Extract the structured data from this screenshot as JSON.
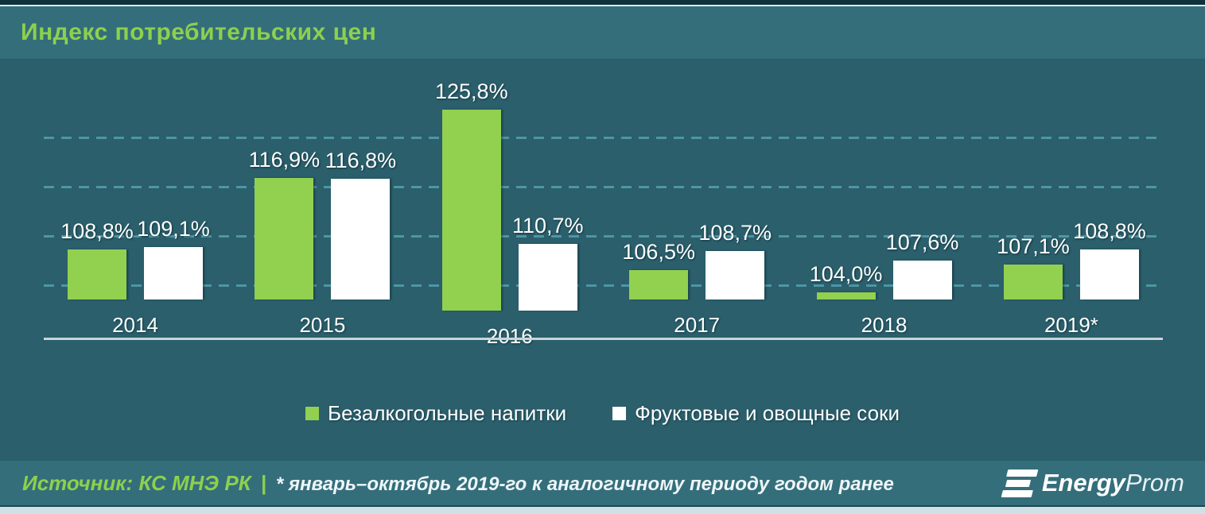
{
  "title": "Индекс потребительских цен",
  "chart_data": {
    "type": "bar",
    "title": "Индекс потребительских цен",
    "categories": [
      "2014",
      "2015",
      "2016",
      "2017",
      "2018",
      "2019*"
    ],
    "series": [
      {
        "name": "Безалкогольные напитки",
        "color": "#92d050",
        "values": [
          108.8,
          116.9,
          125.8,
          106.5,
          104.0,
          107.1
        ],
        "labels": [
          "108,8%",
          "116,9%",
          "125,8%",
          "106,5%",
          "104,0%",
          "107,1%"
        ]
      },
      {
        "name": "Фруктовые и овощные соки",
        "color": "#ffffff",
        "values": [
          109.1,
          116.8,
          110.7,
          108.7,
          107.6,
          108.8
        ],
        "labels": [
          "109,1%",
          "116,8%",
          "110,7%",
          "108,7%",
          "107,6%",
          "108,8%"
        ]
      }
    ],
    "unit": "%",
    "grid": "horizontal-dashed",
    "legend_position": "bottom",
    "y_baseline": 103.2
  },
  "legend": {
    "item1": "Безалкогольные напитки",
    "item2": "Фруктовые и овощные соки"
  },
  "footer": {
    "source": "Источник: КС МНЭ РК",
    "separator": "|",
    "note": "* январь–октябрь 2019-го к аналогичному периоду годом ранее",
    "logo_energy": "Energy",
    "logo_prom": "Prom"
  },
  "colors": {
    "background": "#2a5f6b",
    "band": "#346e7b",
    "accent_green": "#92d050",
    "title_green": "#8dd04e",
    "gridline": "#4f95a5",
    "axis": "#c8d5da",
    "text": "#ffffff"
  }
}
